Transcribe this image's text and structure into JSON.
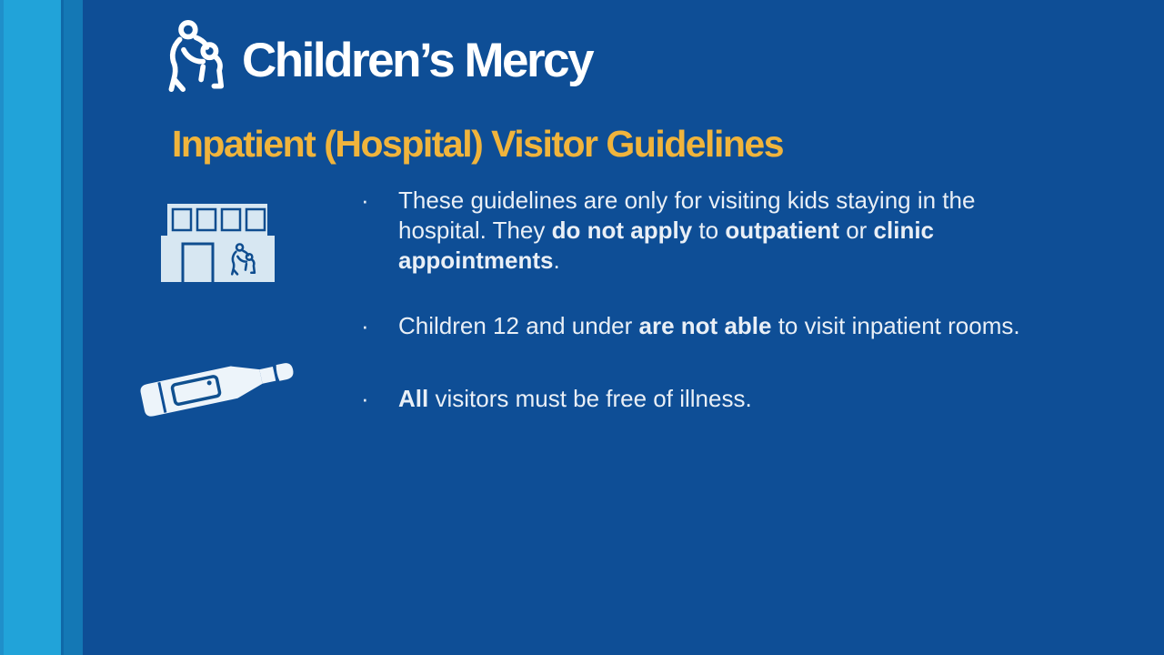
{
  "slide": {
    "background_color": "#0e4e96",
    "accent_stripes": {
      "edge": "#1f8fca",
      "outer": "#21a3d9",
      "separator": "#0f69a8",
      "inner": "#1478b5"
    },
    "logo": {
      "brand_name": "Children’s Mercy",
      "mark_icon": "parent-child-icon",
      "color": "#ffffff"
    },
    "heading": {
      "text": "Inpatient (Hospital) Visitor Guidelines",
      "color": "#f0b43c"
    },
    "body_text_color": "#e9eff6",
    "bullet_marker": "·",
    "bullets": [
      {
        "segments": [
          {
            "t": "These guidelines are only for visiting kids staying in the hospital. They ",
            "b": false
          },
          {
            "t": "do not apply",
            "b": true
          },
          {
            "t": " to ",
            "b": false
          },
          {
            "t": "outpatient",
            "b": true
          },
          {
            "t": " or ",
            "b": false
          },
          {
            "t": "clinic appointments",
            "b": true
          },
          {
            "t": ".",
            "b": false
          }
        ]
      },
      {
        "segments": [
          {
            "t": "Children 12 and under ",
            "b": false
          },
          {
            "t": "are not able",
            "b": true
          },
          {
            "t": " to visit inpatient rooms.",
            "b": false
          }
        ]
      },
      {
        "segments": [
          {
            "t": "All",
            "b": true
          },
          {
            "t": " visitors must be free of illness.",
            "b": false
          }
        ]
      }
    ],
    "side_icons": [
      {
        "name": "hospital-building-icon"
      },
      {
        "name": "thermometer-icon"
      }
    ],
    "icon_colors": {
      "pale_fill": "#d7e7f2",
      "navy_stroke": "#0f4d8f",
      "thermometer_fill": "#edf4fa"
    }
  }
}
